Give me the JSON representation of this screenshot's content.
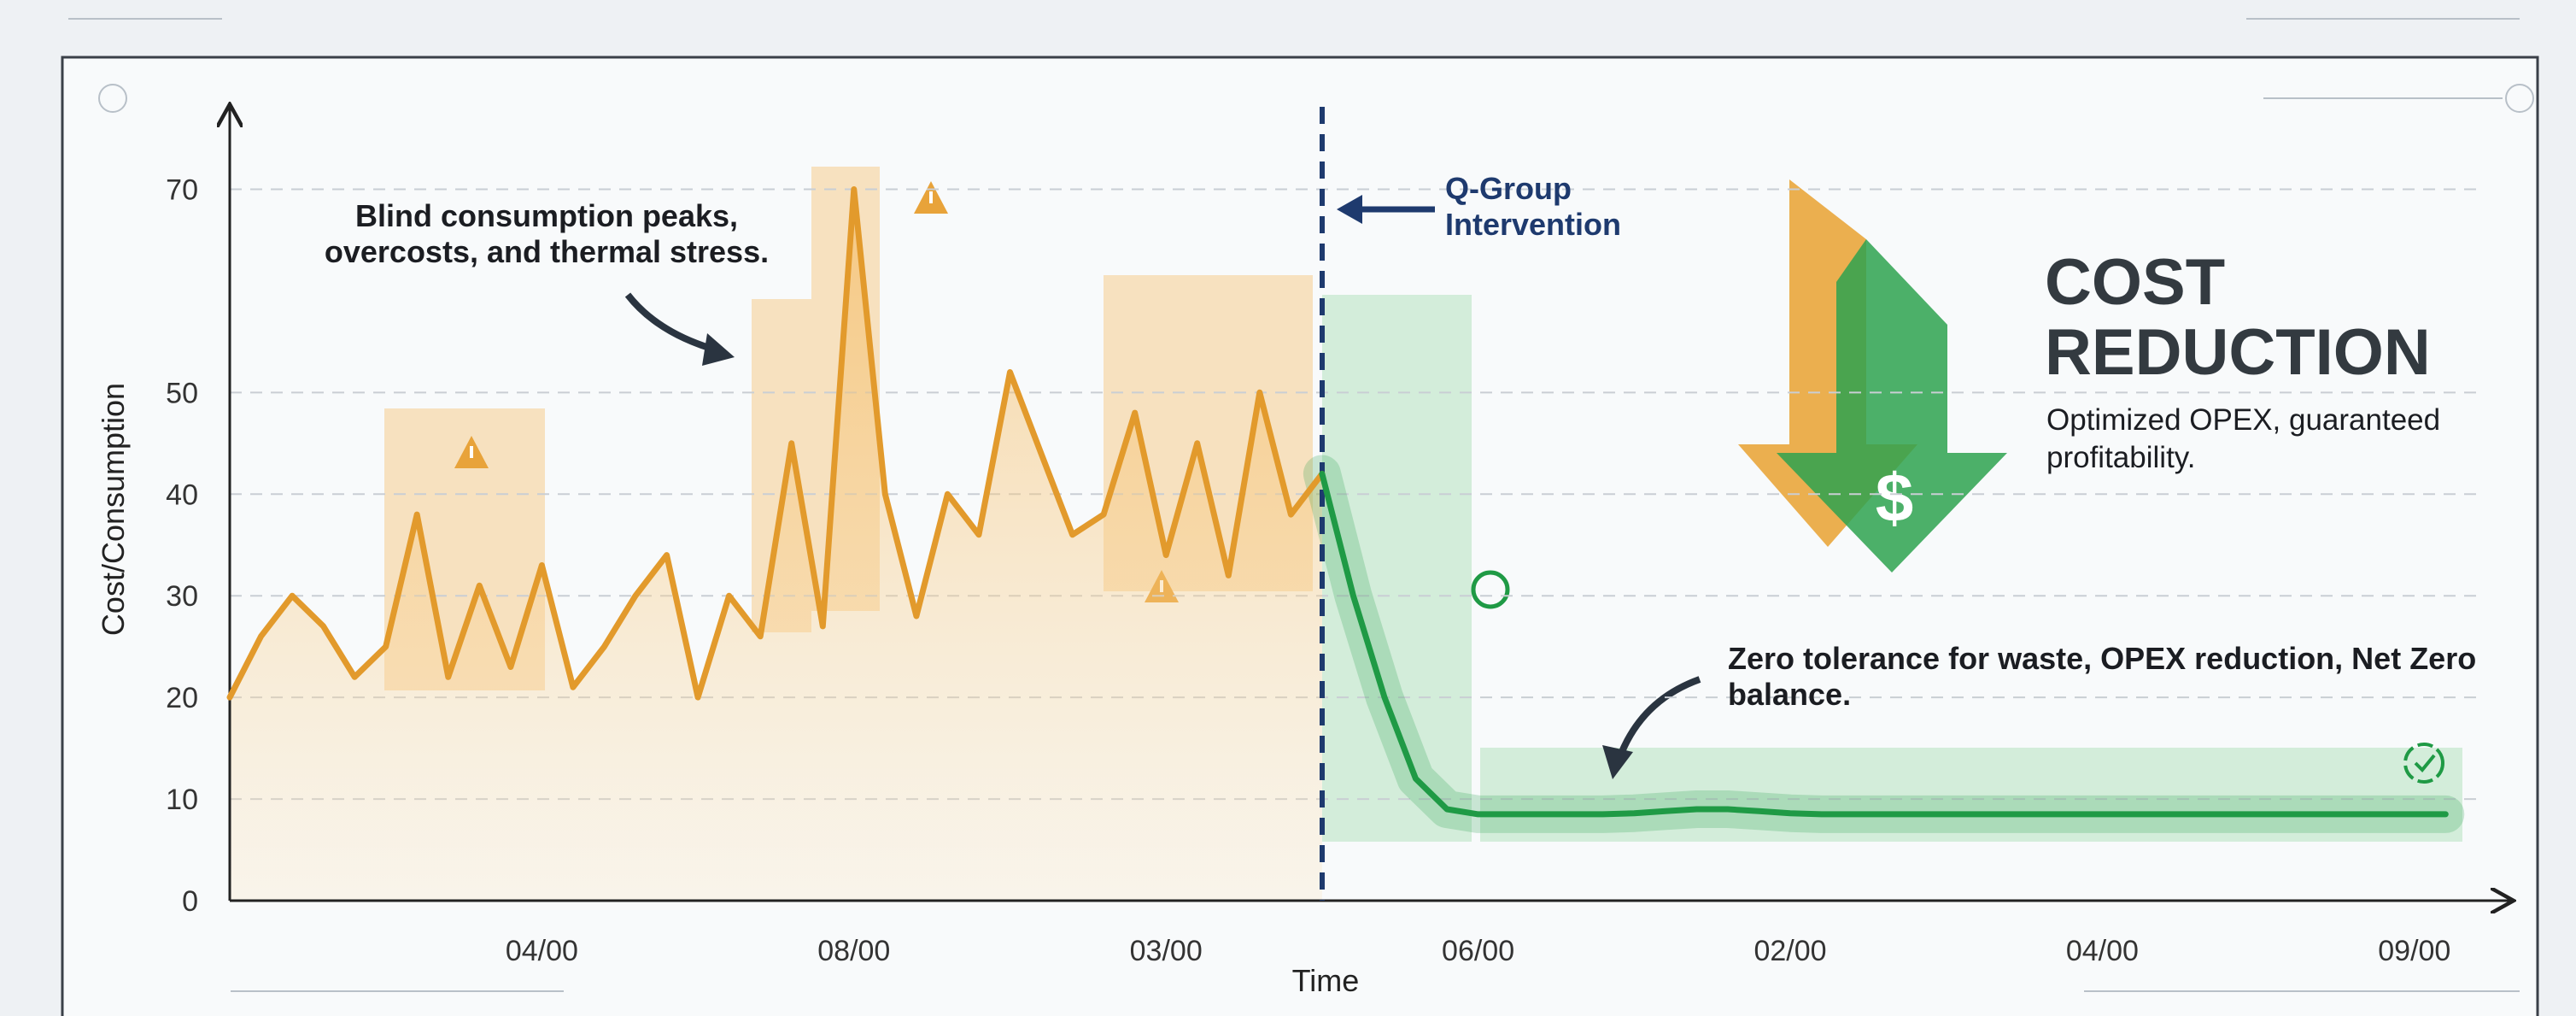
{
  "chart_data": {
    "type": "line",
    "title": "COST REDUCTION",
    "subtitle": "Optimized OPEX, guaranteed profitability.",
    "icon_label": "$",
    "annotations": [
      "Blind consumption peaks, overcosts, and thermal stress.",
      "Q-Group Intervention",
      "Zero tolerance for waste, OPEX reduction, Net Zero balance."
    ],
    "xlabel": "Time",
    "ylabel": "Cost/Consumption",
    "categories": [
      null,
      null,
      null,
      null,
      null,
      null,
      null,
      null,
      null,
      null,
      "04/00",
      null,
      null,
      null,
      null,
      null,
      null,
      null,
      null,
      null,
      "08/00",
      null,
      null,
      null,
      null,
      null,
      null,
      null,
      null,
      null,
      "03/00",
      null,
      null,
      null,
      null,
      null,
      null,
      null,
      null,
      null,
      "06/00",
      null,
      null,
      null,
      null,
      null,
      null,
      null,
      null,
      null,
      "02/00",
      null,
      null,
      null,
      null,
      null,
      null,
      null,
      null,
      null,
      "04/00",
      null,
      null,
      null,
      null,
      null,
      null,
      null,
      null,
      null,
      "09/00",
      null
    ],
    "series": [
      {
        "color": "#e29a2c",
        "values": [
          20,
          26,
          30,
          27,
          22,
          25,
          38,
          22,
          31,
          23,
          33,
          21,
          25,
          30,
          34,
          20,
          30,
          26,
          45,
          27,
          70,
          40,
          28,
          40,
          36,
          52,
          44,
          36,
          38,
          48,
          34,
          45,
          32,
          50,
          38,
          42,
          null,
          null,
          null,
          null,
          null,
          null,
          null,
          null,
          null,
          null,
          null,
          null,
          null,
          null,
          null,
          null,
          null,
          null,
          null,
          null,
          null,
          null,
          null,
          null,
          null,
          null,
          null,
          null,
          null,
          null,
          null,
          null,
          null,
          null,
          null,
          null
        ]
      },
      {
        "color": "#1f9a45",
        "values": [
          null,
          null,
          null,
          null,
          null,
          null,
          null,
          null,
          null,
          null,
          null,
          null,
          null,
          null,
          null,
          null,
          null,
          null,
          null,
          null,
          null,
          null,
          null,
          null,
          null,
          null,
          null,
          null,
          null,
          null,
          null,
          null,
          null,
          null,
          null,
          42,
          30,
          20,
          12,
          9,
          8.5,
          8.5,
          8.5,
          8.5,
          8.5,
          8.6,
          8.8,
          9,
          9,
          8.8,
          8.6,
          8.5,
          8.5,
          8.5,
          8.5,
          8.5,
          8.5,
          8.5,
          8.5,
          8.5,
          8.5,
          8.5,
          8.5,
          8.5,
          8.5,
          8.5,
          8.5,
          8.5,
          8.5,
          8.5,
          8.5,
          8.5
        ]
      }
    ],
    "ylim": [
      0,
      75
    ],
    "yticks": [
      0,
      10,
      20,
      30,
      40,
      50,
      70
    ],
    "grid": true
  }
}
